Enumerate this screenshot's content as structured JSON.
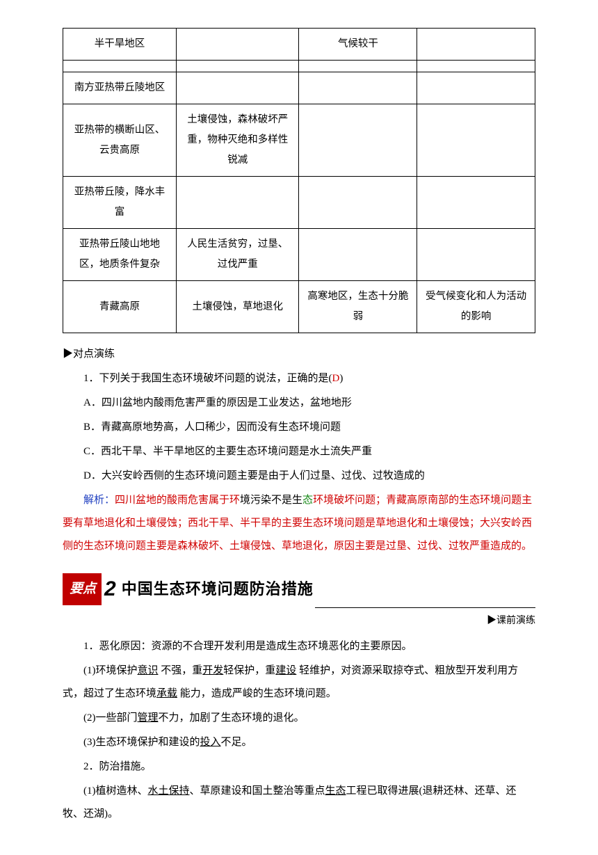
{
  "table": {
    "rows": [
      [
        "半干旱地区",
        "",
        "气候较干",
        ""
      ],
      [
        "",
        "",
        "",
        ""
      ],
      [
        "南方亚热带丘陵地区",
        "",
        "",
        ""
      ],
      [
        "亚热带的横断山区、云贵高原",
        "土壤侵蚀，森林破坏严重，物种灭绝和多样性锐减",
        "",
        ""
      ],
      [
        "亚热带丘陵，降水丰富",
        "",
        "",
        ""
      ],
      [
        "亚热带丘陵山地地区，地质条件复杂",
        "人民生活贫穷，过垦、过伐严重",
        "",
        ""
      ],
      [
        "青藏高原",
        "土壤侵蚀，草地退化",
        "高寒地区，生态十分脆弱",
        "受气候变化和人为活动的影响"
      ]
    ]
  },
  "exercise_header": "▶对点演练",
  "q1": {
    "stem_prefix": "1．下列关于我国生态环境破坏问题的说法，正确的是(",
    "answer": "D",
    "stem_suffix": ")",
    "opt_a": "A．四川盆地内酸雨危害严重的原因是工业发达，盆地地形",
    "opt_b": "B．青藏高原地势高，人口稀少，因而没有生态环境问题",
    "opt_c": "C．西北干旱、半干旱地区的主要生态环境问题是水土流失严重",
    "opt_d": "D．大兴安岭西侧的生态环境问题主要是由于人们过垦、过伐、过牧造成的"
  },
  "analysis": {
    "label": "解析：",
    "part1": "四川盆地的酸雨危害属于环",
    "part2_black": "境污染不是生",
    "part3_green": "态",
    "part4": "环境破坏问题；青藏高原南部的生态环境问题主要有草地退化和土壤侵蚀；西北干旱、半干旱的主要生态环境问题是草地退化和土壤侵蚀；大兴安岭西侧的生态环境问题主要是森林破坏、土壤侵蚀、草地退化，原因主要是过垦、过伐、过牧严重造成的。"
  },
  "heading2": {
    "tag": "要点",
    "num": "2",
    "title": "中国生态环境问题防治措施"
  },
  "side_label": "▶课前演练",
  "content": {
    "p1_a": "1．恶化原因：资源的不合理开发利用是造成生态环境恶化的主要原因。",
    "p2_a": "(1)环境保护",
    "p2_u1": "意识",
    "p2_b": " 不强，重",
    "p2_u2": "开发",
    "p2_c": "轻保护，重",
    "p2_u3": "建设",
    "p2_d": " 轻维护，对资源采取掠夺式、粗放型开发利用方式，超过了生态环境",
    "p2_u4": "承载",
    "p2_e": " 能力，造成严峻的生态环境问题。",
    "p3_a": "(2)一些部门",
    "p3_u1": "管理",
    "p3_b": "不力，加剧了生态环境的退化。",
    "p4_a": "(3)生态环境保护和建设的",
    "p4_u1": "投入",
    "p4_b": "不足。",
    "p5": "2．防治措施。",
    "p6_a": "(1)植树造林、",
    "p6_u1": "水土保持",
    "p6_b": "、草原建设和国土整治等重点",
    "p6_u2": "生态",
    "p6_c": "工程已取得进展(退耕还林、还草、还牧、还湖)。"
  }
}
